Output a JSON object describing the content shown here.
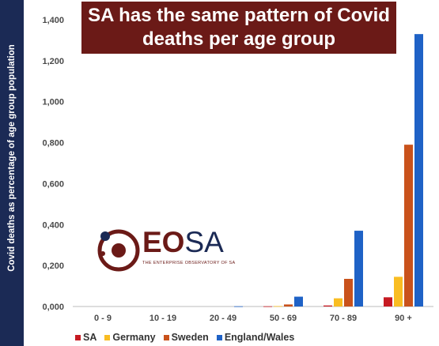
{
  "title": "SA has the same pattern of Covid deaths per age group",
  "ylabel": "Covid deaths as percentage of age group population",
  "logo": {
    "brand_eo": "EO",
    "brand_sa": "SA",
    "tagline": "THE ENTERPRISE OBSERVATORY OF SA"
  },
  "colors": {
    "SA": "#c61a22",
    "Germany": "#f9bd22",
    "Sweden": "#c9521b",
    "England/Wales": "#1f62c6",
    "title_bg": "#6b1a17",
    "ylabel_bg": "#1b2a55"
  },
  "chart_data": {
    "type": "bar",
    "categories": [
      "0 - 9",
      "10 - 19",
      "20 - 49",
      "50 - 69",
      "70 - 89",
      "90 +"
    ],
    "series": [
      {
        "name": "SA",
        "values": [
          0,
          0,
          0,
          0.001,
          0.005,
          0.045
        ]
      },
      {
        "name": "Germany",
        "values": [
          0,
          0,
          0,
          0.002,
          0.04,
          0.145
        ]
      },
      {
        "name": "Sweden",
        "values": [
          0,
          0,
          0,
          0.01,
          0.135,
          0.79
        ]
      },
      {
        "name": "England/Wales",
        "values": [
          0,
          0,
          0.001,
          0.048,
          0.37,
          1.33
        ]
      }
    ],
    "ylim": [
      0,
      1.4
    ],
    "yticks": [
      0,
      0.2,
      0.4,
      0.6,
      0.8,
      1.0,
      1.2,
      1.4
    ],
    "ytick_labels": [
      "0,000",
      "0,200",
      "0,400",
      "0,600",
      "0,800",
      "1,000",
      "1,200",
      "1,400"
    ],
    "grid": false,
    "legend_position": "bottom"
  }
}
